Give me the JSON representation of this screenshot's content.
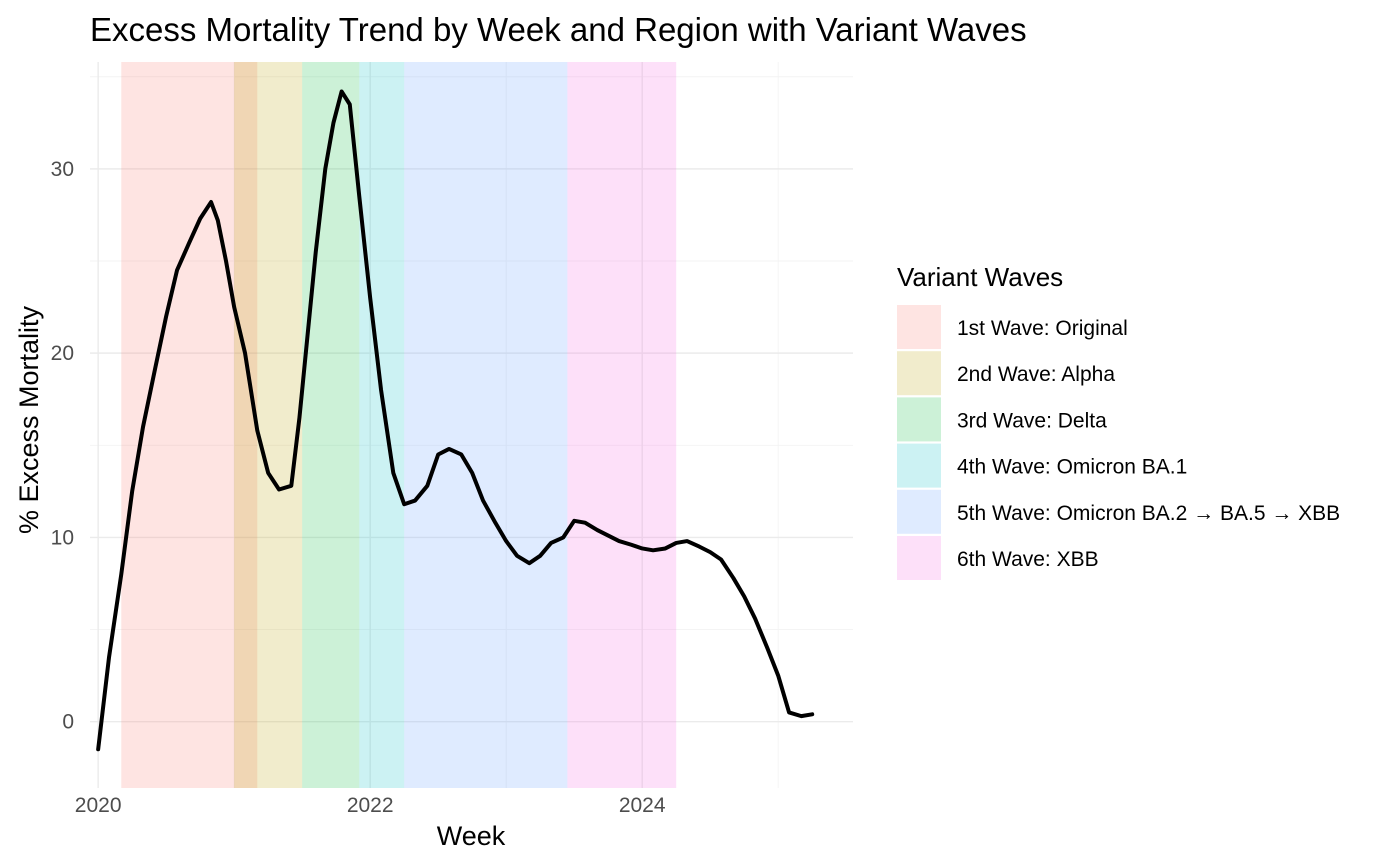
{
  "chart_data": {
    "type": "line",
    "title": "Excess Mortality Trend by Week and Region with Variant Waves",
    "xlabel": "Week",
    "ylabel": "% Excess Mortality",
    "xlim": [
      2019.94,
      2025.55
    ],
    "ylim": [
      -3.6,
      35.8
    ],
    "x_ticks": [
      2020,
      2022,
      2024
    ],
    "x_minor_ticks": [
      2021,
      2023,
      2025
    ],
    "y_ticks": [
      0,
      10,
      20,
      30
    ],
    "y_minor_ticks": [
      -5,
      5,
      15,
      25,
      35
    ],
    "grid": true,
    "legend": {
      "title": "Variant Waves",
      "position": "right"
    },
    "waves": [
      {
        "name": "1st Wave: Original",
        "start": 2020.17,
        "end": 2021.17,
        "color": "#F8766D"
      },
      {
        "name": "2nd Wave: Alpha",
        "start": 2021.0,
        "end": 2021.5,
        "color": "#B79F00"
      },
      {
        "name": "3rd Wave: Delta",
        "start": 2021.5,
        "end": 2021.92,
        "color": "#00BA38"
      },
      {
        "name": "4th Wave: Omicron BA.1",
        "start": 2021.92,
        "end": 2022.25,
        "color": "#00BFC4"
      },
      {
        "name": "5th Wave: Omicron BA.2 → BA.5 → XBB",
        "start": 2022.25,
        "end": 2023.45,
        "color": "#619CFF"
      },
      {
        "name": "6th Wave: XBB",
        "start": 2023.45,
        "end": 2024.25,
        "color": "#F564E3"
      }
    ],
    "series": [
      {
        "x": [
          2020.0,
          2020.08,
          2020.17,
          2020.25,
          2020.33,
          2020.42,
          2020.5,
          2020.58,
          2020.67,
          2020.75,
          2020.83,
          2020.88,
          2020.94,
          2021.0,
          2021.08,
          2021.17,
          2021.25,
          2021.33,
          2021.42,
          2021.48,
          2021.54,
          2021.6,
          2021.67,
          2021.73,
          2021.79,
          2021.85,
          2021.92,
          2022.0,
          2022.08,
          2022.17,
          2022.25,
          2022.33,
          2022.42,
          2022.5,
          2022.58,
          2022.67,
          2022.75,
          2022.83,
          2022.92,
          2023.0,
          2023.08,
          2023.17,
          2023.25,
          2023.33,
          2023.42,
          2023.5,
          2023.58,
          2023.67,
          2023.75,
          2023.83,
          2023.92,
          2024.0,
          2024.08,
          2024.17,
          2024.25,
          2024.33,
          2024.42,
          2024.5,
          2024.58,
          2024.67,
          2024.75,
          2024.83,
          2024.92,
          2025.0,
          2025.08,
          2025.17,
          2025.25
        ],
        "y": [
          -1.5,
          3.5,
          8.0,
          12.5,
          16.0,
          19.2,
          22.0,
          24.5,
          26.0,
          27.3,
          28.2,
          27.2,
          25.0,
          22.5,
          20.0,
          15.8,
          13.5,
          12.6,
          12.8,
          16.5,
          21.0,
          25.5,
          30.0,
          32.5,
          34.2,
          33.5,
          28.5,
          23.0,
          18.0,
          13.5,
          11.8,
          12.0,
          12.8,
          14.5,
          14.8,
          14.5,
          13.5,
          12.0,
          10.8,
          9.8,
          9.0,
          8.6,
          9.0,
          9.7,
          10.0,
          10.9,
          10.8,
          10.4,
          10.1,
          9.8,
          9.6,
          9.4,
          9.3,
          9.4,
          9.7,
          9.8,
          9.5,
          9.2,
          8.8,
          7.8,
          6.8,
          5.6,
          4.0,
          2.5,
          0.5,
          0.3,
          0.4
        ]
      }
    ]
  }
}
